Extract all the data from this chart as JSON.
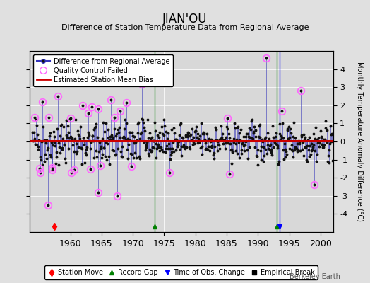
{
  "title": "JIAN'OU",
  "subtitle": "Difference of Station Temperature Data from Regional Average",
  "ylabel": "Monthly Temperature Anomaly Difference (°C)",
  "xlim": [
    1953.5,
    2002.0
  ],
  "ylim": [
    -5,
    5
  ],
  "yticks": [
    -4,
    -3,
    -2,
    -1,
    0,
    1,
    2,
    3,
    4
  ],
  "xticks": [
    1960,
    1965,
    1970,
    1975,
    1980,
    1985,
    1990,
    1995,
    2000
  ],
  "xtick_labels": [
    "1960",
    "1965",
    "1970",
    "1975",
    "1980",
    "1985",
    "1990",
    "1995",
    "2000"
  ],
  "background_color": "#e0e0e0",
  "plot_bg_color": "#d8d8d8",
  "line_color": "#3333bb",
  "dot_color": "#111111",
  "qc_color": "#ff66ff",
  "bias_color": "#cc0000",
  "bias_value": 0.05,
  "station_moves": [
    1957.5
  ],
  "record_gaps": [
    1973.5,
    1993.0
  ],
  "obs_changes": [
    1993.5
  ],
  "empirical_breaks": [],
  "footer": "Berkeley Earth",
  "seed": 42
}
